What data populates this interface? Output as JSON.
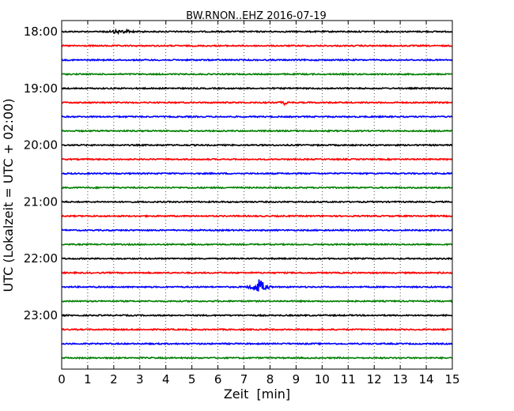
{
  "chart_data": {
    "type": "line",
    "title": "BW.RNON..EHZ 2016-07-19",
    "xlabel": "Zeit  [min]",
    "ylabel": "UTC (Lokalzeit = UTC + 02:00)",
    "xlim": [
      0,
      15
    ],
    "x_ticks": [
      "0",
      "1",
      "2",
      "3",
      "4",
      "5",
      "6",
      "7",
      "8",
      "9",
      "10",
      "11",
      "12",
      "13",
      "14",
      "15"
    ],
    "y_ticks": [
      "18:00",
      "19:00",
      "20:00",
      "21:00",
      "22:00",
      "23:00"
    ],
    "grid": "vertical-dotted",
    "trace_color_cycle": [
      "#000000",
      "#ff0000",
      "#0000ff",
      "#008000"
    ],
    "series": [
      {
        "start": "18:00",
        "color": "#000000",
        "events": [
          {
            "minute": 2.3,
            "amp": 0.35,
            "width": 1.2
          }
        ]
      },
      {
        "start": "18:15",
        "color": "#ff0000",
        "events": []
      },
      {
        "start": "18:30",
        "color": "#0000ff",
        "events": []
      },
      {
        "start": "18:45",
        "color": "#008000",
        "events": []
      },
      {
        "start": "19:00",
        "color": "#000000",
        "events": []
      },
      {
        "start": "19:15",
        "color": "#ff0000",
        "events": [
          {
            "minute": 8.55,
            "amp": 0.45,
            "width": 0.25
          }
        ]
      },
      {
        "start": "19:30",
        "color": "#0000ff",
        "events": []
      },
      {
        "start": "19:45",
        "color": "#008000",
        "events": []
      },
      {
        "start": "20:00",
        "color": "#000000",
        "events": []
      },
      {
        "start": "20:15",
        "color": "#ff0000",
        "events": []
      },
      {
        "start": "20:30",
        "color": "#0000ff",
        "events": []
      },
      {
        "start": "20:45",
        "color": "#008000",
        "events": []
      },
      {
        "start": "21:00",
        "color": "#000000",
        "events": []
      },
      {
        "start": "21:15",
        "color": "#ff0000",
        "events": []
      },
      {
        "start": "21:30",
        "color": "#0000ff",
        "events": []
      },
      {
        "start": "21:45",
        "color": "#008000",
        "events": []
      },
      {
        "start": "22:00",
        "color": "#000000",
        "events": []
      },
      {
        "start": "22:15",
        "color": "#ff0000",
        "events": [
          {
            "minute": 14.5,
            "amp": 0.2,
            "width": 0.15
          }
        ]
      },
      {
        "start": "22:30",
        "color": "#0000ff",
        "events": [
          {
            "minute": 7.6,
            "amp": 1.3,
            "width": 0.6
          }
        ]
      },
      {
        "start": "22:45",
        "color": "#008000",
        "events": []
      },
      {
        "start": "23:00",
        "color": "#000000",
        "events": []
      },
      {
        "start": "23:15",
        "color": "#ff0000",
        "events": []
      },
      {
        "start": "23:30",
        "color": "#0000ff",
        "events": []
      },
      {
        "start": "23:45",
        "color": "#008000",
        "events": []
      }
    ]
  }
}
